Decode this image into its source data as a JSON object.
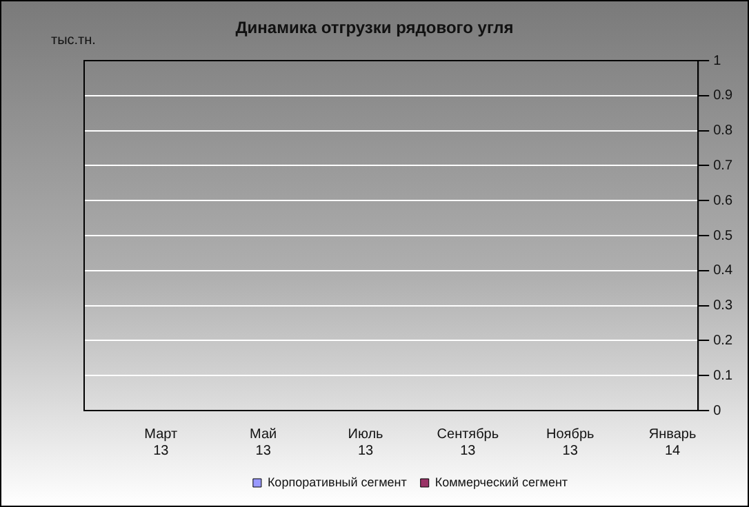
{
  "chart_data": {
    "type": "bar",
    "title": "Динамика отгрузки рядового угля",
    "ylabel": "тыс.тн.",
    "categories": [
      null,
      "Март 13",
      null,
      "Май 13",
      null,
      "Июль 13",
      null,
      "Сентябрь 13",
      null,
      "Ноябрь 13",
      null,
      "Январь 14"
    ],
    "series": [
      {
        "name": "Корпоративный сегмент",
        "color": "#9999ff",
        "values": [
          null,
          null,
          null,
          null,
          null,
          null,
          null,
          null,
          null,
          null,
          null,
          null
        ]
      },
      {
        "name": "Коммерческий сегмент",
        "color": "#993366",
        "values": [
          null,
          null,
          null,
          null,
          null,
          null,
          null,
          null,
          null,
          null,
          null,
          null
        ]
      }
    ],
    "ylim": [
      0,
      1
    ],
    "yticks": [
      0,
      0.1,
      0.2,
      0.3,
      0.4,
      0.5,
      0.6,
      0.7,
      0.8,
      0.9,
      1
    ],
    "grid": "y",
    "legend": "bottom"
  }
}
